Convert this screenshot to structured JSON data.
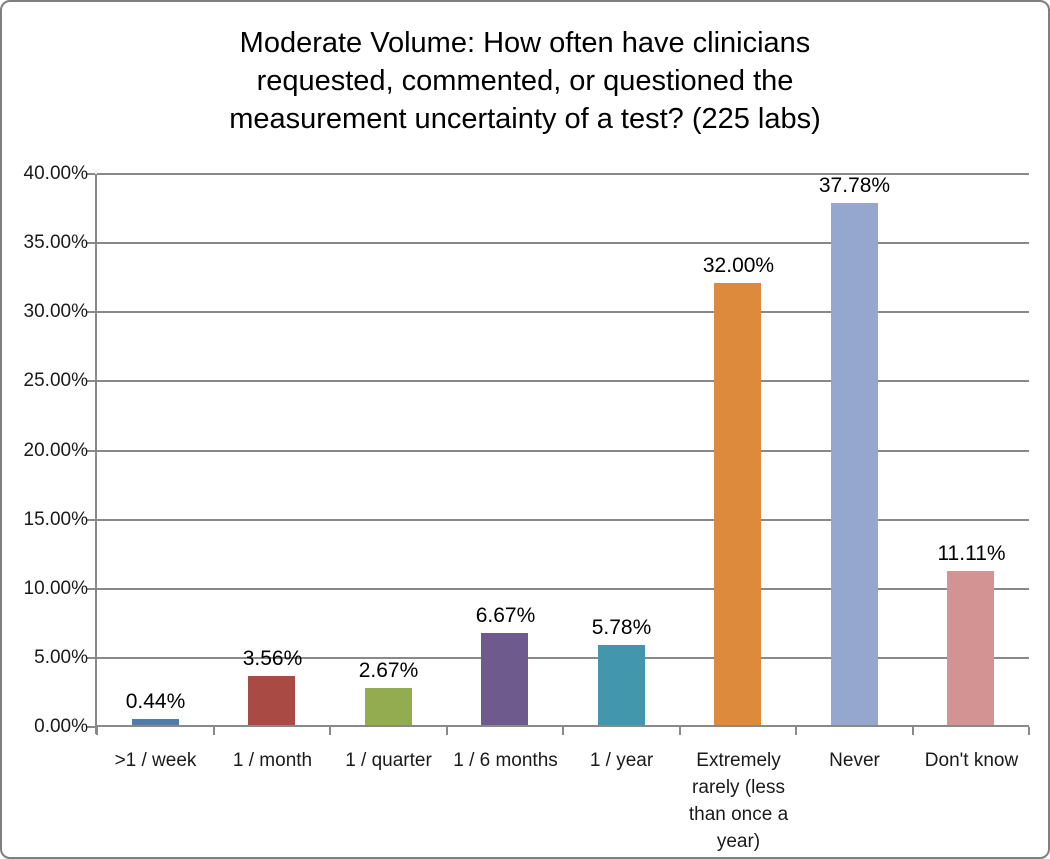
{
  "chart": {
    "title": "Moderate Volume: How often have clinicians requested, commented, or questioned the measurement uncertainty of a test? (225 labs)",
    "title_lines": [
      "Moderate Volume: How often have clinicians",
      "requested,  commented, or questioned the",
      "measurement uncertainty of a test? (225 labs)"
    ]
  },
  "chart_data": {
    "type": "bar",
    "title": "Moderate Volume: How often have clinicians requested, commented, or questioned the measurement uncertainty of a test? (225 labs)",
    "categories": [
      ">1 / week",
      "1 / month",
      "1 / quarter",
      "1 / 6 months",
      "1 / year",
      "Extremely rarely (less than once a year)",
      "Never",
      "Don't know"
    ],
    "values": [
      0.44,
      3.56,
      2.67,
      6.67,
      5.78,
      32.0,
      37.78,
      11.11
    ],
    "value_labels": [
      "0.44%",
      "3.56%",
      "2.67%",
      "6.67%",
      "5.78%",
      "32.00%",
      "37.78%",
      "11.11%"
    ],
    "bar_colors": [
      "#4E7CAC",
      "#A94A45",
      "#93AC4F",
      "#6E5A8D",
      "#4297AD",
      "#DD8A3D",
      "#95A7CF",
      "#D29392"
    ],
    "xlabel": "",
    "ylabel": "",
    "ylim": [
      0,
      40
    ],
    "y_ticks": [
      {
        "value": 0,
        "label": "0.00%"
      },
      {
        "value": 5,
        "label": "5.00%"
      },
      {
        "value": 10,
        "label": "10.00%"
      },
      {
        "value": 15,
        "label": "15.00%"
      },
      {
        "value": 20,
        "label": "20.00%"
      },
      {
        "value": 25,
        "label": "25.00%"
      },
      {
        "value": 30,
        "label": "30.00%"
      },
      {
        "value": 35,
        "label": "35.00%"
      },
      {
        "value": 40,
        "label": "40.00%"
      }
    ],
    "grid": true,
    "legend": false,
    "gridline_color": "#898989",
    "axis_color": "#898989",
    "border_color": "#7F7F7F",
    "background_color": "#FFFFFF",
    "label_color": "#000000"
  }
}
